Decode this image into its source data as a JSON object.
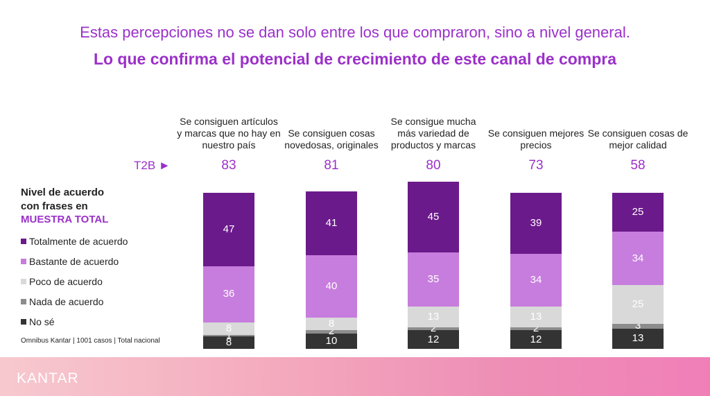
{
  "chart_data": {
    "type": "stacked-bar",
    "title": "Estas percepciones no se dan solo entre los que compraron, sino a nivel general.",
    "subtitle": "Lo que confirma el potencial de crecimiento de este canal de compra",
    "categories": [
      "Se consiguen artículos y marcas que no hay en nuestro país",
      "Se consiguen cosas novedosas, originales",
      "Se consigue mucha más variedad de productos y marcas",
      "Se consiguen mejores precios",
      "Se consiguen cosas de mejor calidad"
    ],
    "t2b_label": "T2B ►",
    "t2b": [
      83,
      81,
      80,
      73,
      58
    ],
    "legend_title": "Nivel de acuerdo con frases en",
    "legend_subtitle": "MUESTRA TOTAL",
    "series": [
      {
        "name": "Totalmente de acuerdo",
        "color": "#6b1a8b",
        "values": [
          47,
          41,
          45,
          39,
          25
        ]
      },
      {
        "name": "Bastante de acuerdo",
        "color": "#c77ddd",
        "values": [
          36,
          40,
          35,
          34,
          34
        ]
      },
      {
        "name": "Poco de acuerdo",
        "color": "#d9d9d9",
        "values": [
          8,
          8,
          13,
          13,
          25
        ]
      },
      {
        "name": "Nada de acuerdo",
        "color": "#8c8c8c",
        "values": [
          1,
          2,
          2,
          2,
          3
        ]
      },
      {
        "name": "No sé",
        "color": "#333333",
        "values": [
          8,
          10,
          12,
          12,
          13
        ]
      }
    ],
    "source": "Omnibus Kantar | 1001 casos | Total nacional",
    "logo": "KANTAR"
  }
}
